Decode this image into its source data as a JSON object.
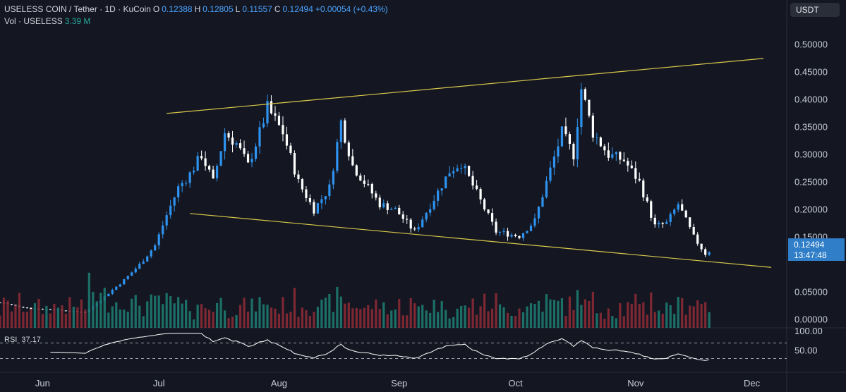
{
  "header": {
    "symbol": "USELESS COIN / Tether · 1D · KuCoin",
    "o_label": "O",
    "o_value": "0.12388",
    "h_label": "H",
    "h_value": "0.12805",
    "l_label": "L",
    "l_value": "0.11557",
    "c_label": "C",
    "c_value": "0.12494",
    "change": "+0.00054 (+0.43%)",
    "vol_label": "Vol · USELESS",
    "vol_value": "3.39 M"
  },
  "currency_button": "USDT",
  "price_tag": {
    "price": "0.12494",
    "countdown": "13:47:48"
  },
  "rsi": {
    "label": "RSI",
    "value": "37.17"
  },
  "colors": {
    "up": "#2e93f0",
    "down": "#ffffff",
    "vol_up": "#1d7a70",
    "vol_down": "#8a2a35",
    "trend": "#d9c84a",
    "rsi": "#ffffff"
  },
  "chart_data": [
    {
      "type": "candlestick",
      "title": "USELESS COIN / Tether · 1D · KuCoin",
      "x_range": [
        "2025-05-21",
        "2025-12-10"
      ],
      "x_ticks": [
        "Jun",
        "Jul",
        "Aug",
        "Sep",
        "Oct",
        "Nov",
        "Dec"
      ],
      "y_ticks": [
        "0.50000",
        "0.45000",
        "0.40000",
        "0.35000",
        "0.30000",
        "0.25000",
        "0.20000",
        "0.15000",
        "0.05000",
        "0.00000"
      ],
      "ylim": [
        -0.015,
        0.53
      ],
      "close_path": [
        [
          "2025-05-21",
          0.031
        ],
        [
          "2025-05-25",
          0.025
        ],
        [
          "2025-05-29",
          0.02
        ],
        [
          "2025-06-02",
          0.019
        ],
        [
          "2025-06-07",
          0.016
        ],
        [
          "2025-06-12",
          0.013
        ],
        [
          "2025-06-15",
          0.03
        ],
        [
          "2025-06-18",
          0.048
        ],
        [
          "2025-06-22",
          0.072
        ],
        [
          "2025-06-26",
          0.1
        ],
        [
          "2025-06-30",
          0.135
        ],
        [
          "2025-07-03",
          0.19
        ],
        [
          "2025-07-06",
          0.24
        ],
        [
          "2025-07-09",
          0.265
        ],
        [
          "2025-07-12",
          0.3
        ],
        [
          "2025-07-15",
          0.25
        ],
        [
          "2025-07-18",
          0.34
        ],
        [
          "2025-07-21",
          0.32
        ],
        [
          "2025-07-24",
          0.28
        ],
        [
          "2025-07-27",
          0.34
        ],
        [
          "2025-07-29",
          0.385
        ],
        [
          "2025-08-02",
          0.34
        ],
        [
          "2025-08-06",
          0.25
        ],
        [
          "2025-08-10",
          0.2
        ],
        [
          "2025-08-14",
          0.24
        ],
        [
          "2025-08-17",
          0.36
        ],
        [
          "2025-08-20",
          0.28
        ],
        [
          "2025-08-24",
          0.24
        ],
        [
          "2025-08-27",
          0.21
        ],
        [
          "2025-08-31",
          0.2
        ],
        [
          "2025-09-05",
          0.16
        ],
        [
          "2025-09-10",
          0.22
        ],
        [
          "2025-09-14",
          0.27
        ],
        [
          "2025-09-17",
          0.285
        ],
        [
          "2025-09-21",
          0.23
        ],
        [
          "2025-09-26",
          0.16
        ],
        [
          "2025-10-02",
          0.152
        ],
        [
          "2025-10-06",
          0.18
        ],
        [
          "2025-10-09",
          0.25
        ],
        [
          "2025-10-13",
          0.34
        ],
        [
          "2025-10-16",
          0.3
        ],
        [
          "2025-10-18",
          0.42
        ],
        [
          "2025-10-21",
          0.34
        ],
        [
          "2025-10-25",
          0.3
        ],
        [
          "2025-10-29",
          0.29
        ],
        [
          "2025-11-02",
          0.25
        ],
        [
          "2025-11-06",
          0.17
        ],
        [
          "2025-11-09",
          0.175
        ],
        [
          "2025-11-12",
          0.21
        ],
        [
          "2025-11-16",
          0.15
        ],
        [
          "2025-11-19",
          0.12
        ],
        [
          "2025-11-20",
          0.12494
        ]
      ],
      "last_close": 0.12494,
      "trendlines": [
        {
          "from": [
            "2025-07-03",
            0.375
          ],
          "to": [
            "2025-12-04",
            0.475
          ]
        },
        {
          "from": [
            "2025-07-09",
            0.193
          ],
          "to": [
            "2025-12-06",
            0.095
          ]
        }
      ],
      "rsi_ticks": [
        "100.00",
        "50.00"
      ],
      "rsi_last": 37.17
    }
  ]
}
